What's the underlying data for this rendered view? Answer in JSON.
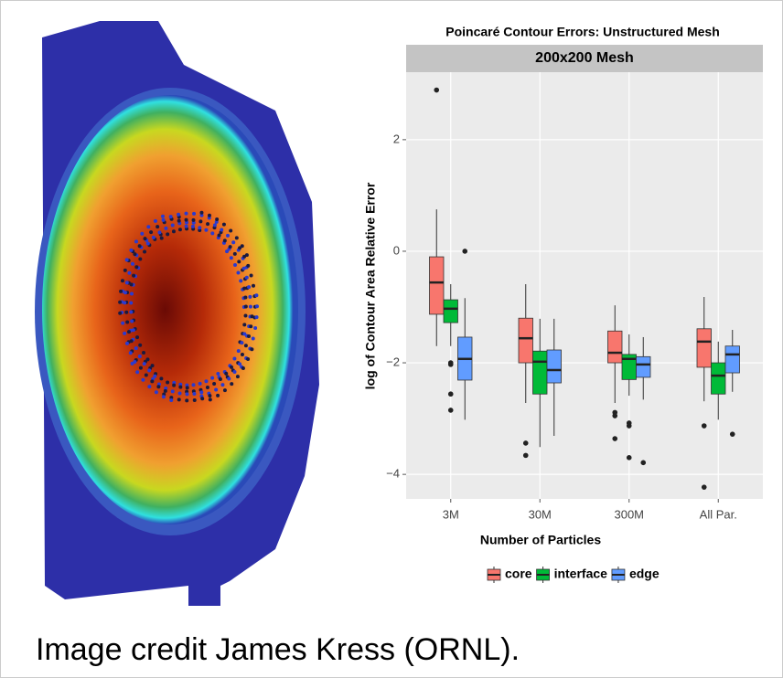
{
  "chart_data": {
    "type": "box",
    "title": "Poincaré Contour Errors: Unstructured Mesh",
    "panel_title": "200x200 Mesh",
    "x_label": "Number of Particles",
    "y_label": "log of Contour Area Relative Error",
    "categories": [
      "3M",
      "30M",
      "300M",
      "All Par."
    ],
    "ylim": [
      -4.44,
      3.21
    ],
    "yticks": [
      {
        "value": -4,
        "label": "−4"
      },
      {
        "value": -2,
        "label": "−2"
      },
      0,
      2
    ],
    "grid": true,
    "legend": "bottom",
    "series": [
      {
        "name": "core",
        "color": "#f8766d",
        "boxes": [
          {
            "min": -1.7,
            "q1": -1.13,
            "median": -0.56,
            "q3": -0.1,
            "max": 0.75,
            "outliers": [
              2.89
            ]
          },
          {
            "min": -2.72,
            "q1": -2.0,
            "median": -1.56,
            "q3": -1.2,
            "max": -0.59,
            "outliers": [
              -3.44,
              -3.66
            ]
          },
          {
            "min": -2.72,
            "q1": -2.0,
            "median": -1.82,
            "q3": -1.43,
            "max": -0.97,
            "outliers": [
              -2.89,
              -2.95,
              -3.36
            ]
          },
          {
            "min": -2.69,
            "q1": -2.08,
            "median": -1.62,
            "q3": -1.39,
            "max": -0.82,
            "outliers": [
              -3.13,
              -4.23
            ]
          }
        ]
      },
      {
        "name": "interface",
        "color": "#00ba38",
        "boxes": [
          {
            "min": -1.7,
            "q1": -1.28,
            "median": -1.03,
            "q3": -0.87,
            "max": -0.59,
            "outliers": [
              -2.0,
              -2.03,
              -2.56,
              -2.85
            ]
          },
          {
            "min": -3.51,
            "q1": -2.56,
            "median": -1.98,
            "q3": -1.79,
            "max": -1.21,
            "outliers": []
          },
          {
            "min": -2.59,
            "q1": -2.3,
            "median": -1.93,
            "q3": -1.85,
            "max": -1.49,
            "outliers": [
              -3.08,
              -3.13,
              -3.7
            ]
          },
          {
            "min": -3.02,
            "q1": -2.56,
            "median": -2.23,
            "q3": -2.0,
            "max": -1.62,
            "outliers": []
          }
        ]
      },
      {
        "name": "edge",
        "color": "#619cff",
        "boxes": [
          {
            "min": -3.02,
            "q1": -2.31,
            "median": -1.93,
            "q3": -1.54,
            "max": -0.84,
            "outliers": [
              0.0
            ]
          },
          {
            "min": -3.31,
            "q1": -2.36,
            "median": -2.13,
            "q3": -1.77,
            "max": -1.21,
            "outliers": []
          },
          {
            "min": -2.66,
            "q1": -2.26,
            "median": -2.03,
            "q3": -1.89,
            "max": -1.54,
            "outliers": [
              -3.79
            ]
          },
          {
            "min": -2.52,
            "q1": -2.18,
            "median": -1.85,
            "q3": -1.7,
            "max": -1.41,
            "outliers": [
              -3.28
            ]
          }
        ]
      }
    ]
  },
  "caption": "Image credit James Kress (ORNL)."
}
